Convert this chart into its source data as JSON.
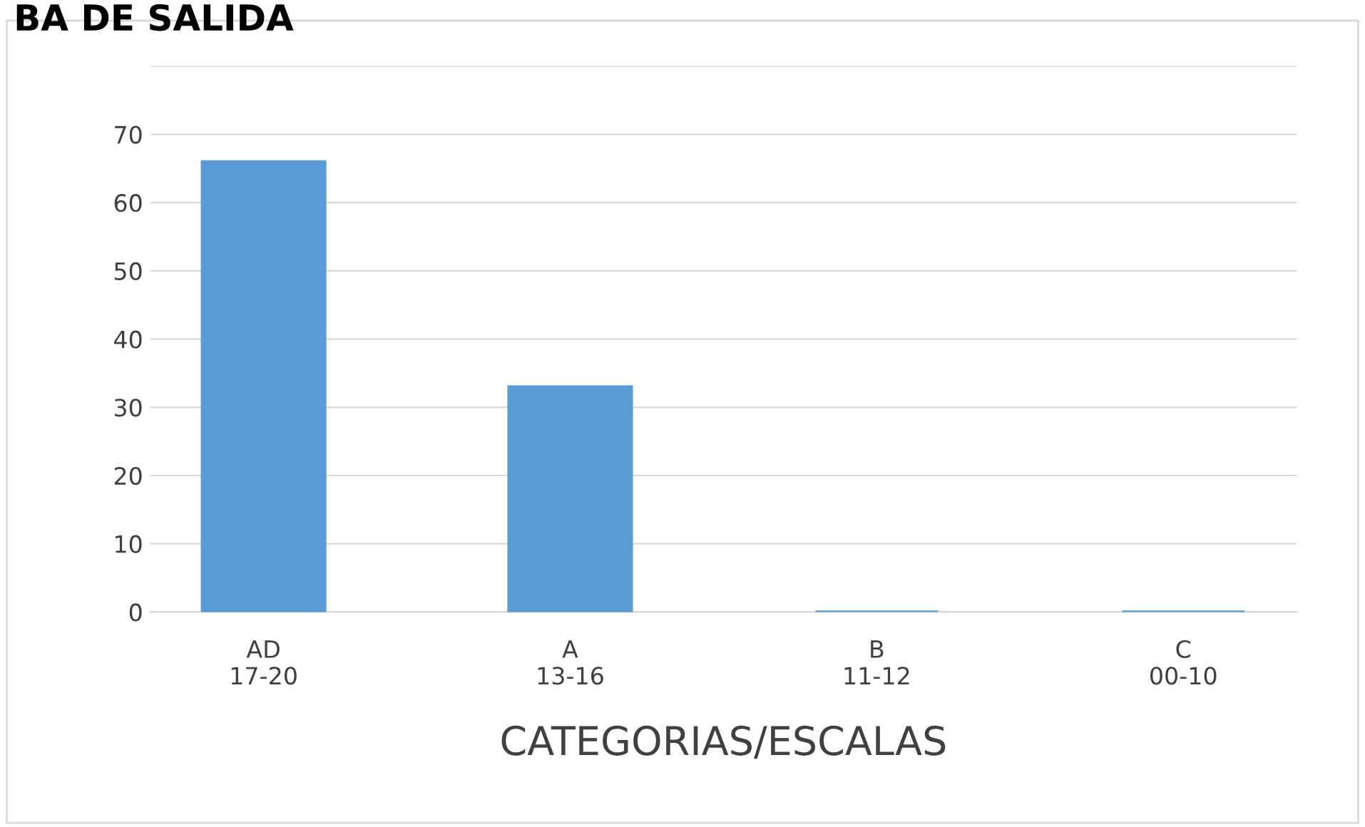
{
  "chart_data": {
    "type": "bar",
    "title": "BA DE SALIDA",
    "xlabel": "CATEGORIAS/ESCALAS",
    "categories": [
      "AD\n17-20",
      "A\n13-16",
      "B\n11-12",
      "C\n00-10"
    ],
    "values": [
      66,
      33,
      0,
      0
    ],
    "color": "#5b9bd5",
    "ylim": [
      0,
      80
    ],
    "yticks": [
      0,
      10,
      20,
      30,
      40,
      50,
      60,
      70,
      {
        "value": 80,
        "label": null
      }
    ],
    "grid": "y"
  }
}
